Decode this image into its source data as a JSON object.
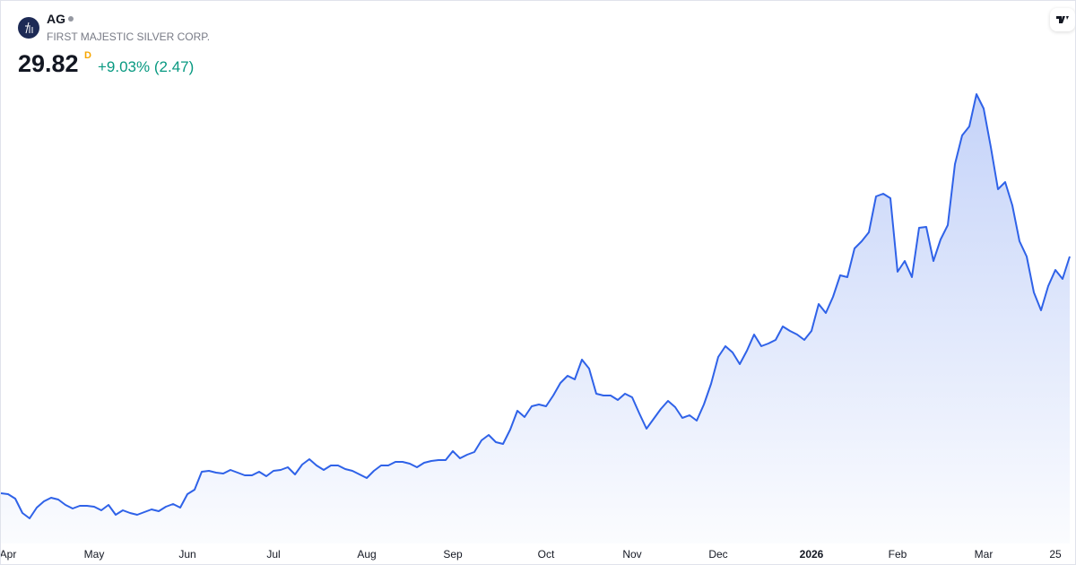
{
  "header": {
    "symbol": "AG",
    "name": "FIRST MAJESTIC SILVER CORP.",
    "price": "29.82",
    "interval": "D",
    "change": "+9.03% (2.47)"
  },
  "chart_data": {
    "type": "area",
    "color": "#2f62e8",
    "categories": [
      null,
      "Apr",
      null,
      null,
      null,
      null,
      null,
      null,
      null,
      null,
      null,
      null,
      null,
      "May",
      null,
      null,
      null,
      null,
      null,
      null,
      null,
      null,
      null,
      null,
      null,
      null,
      "Jun",
      null,
      null,
      null,
      null,
      null,
      null,
      null,
      null,
      null,
      null,
      null,
      "Jul",
      null,
      null,
      null,
      null,
      null,
      null,
      null,
      null,
      null,
      null,
      null,
      null,
      "Aug",
      null,
      null,
      null,
      null,
      null,
      null,
      null,
      null,
      null,
      null,
      null,
      "Sep",
      null,
      null,
      null,
      null,
      null,
      null,
      null,
      null,
      null,
      null,
      null,
      null,
      "Oct",
      null,
      null,
      null,
      null,
      null,
      null,
      null,
      null,
      null,
      null,
      null,
      "Nov",
      null,
      null,
      null,
      null,
      null,
      null,
      null,
      null,
      null,
      null,
      null,
      "Dec",
      null,
      null,
      null,
      null,
      null,
      null,
      null,
      null,
      null,
      null,
      null,
      null,
      "2026",
      null,
      null,
      null,
      null,
      null,
      null,
      null,
      null,
      null,
      null,
      null,
      "Feb",
      null,
      null,
      null,
      null,
      null,
      null,
      null,
      null,
      null,
      null,
      null,
      "Mar",
      null,
      null,
      null,
      null,
      null,
      null,
      null,
      null,
      null,
      "25",
      null,
      null
    ],
    "values": [
      7.64,
      7.56,
      7.14,
      5.8,
      5.29,
      6.3,
      6.89,
      7.22,
      7.06,
      6.55,
      6.22,
      6.47,
      6.47,
      6.38,
      6.05,
      6.55,
      5.63,
      6.05,
      5.8,
      5.63,
      5.88,
      6.13,
      5.96,
      6.38,
      6.64,
      6.3,
      7.56,
      7.98,
      9.66,
      9.74,
      9.58,
      9.49,
      9.83,
      9.58,
      9.32,
      9.32,
      9.66,
      9.24,
      9.74,
      9.83,
      10.08,
      9.41,
      10.33,
      10.84,
      10.25,
      9.83,
      10.25,
      10.25,
      9.91,
      9.74,
      9.41,
      9.07,
      9.74,
      10.25,
      10.25,
      10.58,
      10.58,
      10.42,
      10.08,
      10.5,
      10.67,
      10.75,
      10.75,
      11.59,
      10.92,
      11.26,
      11.51,
      12.6,
      13.1,
      12.43,
      12.26,
      13.61,
      15.37,
      14.78,
      15.79,
      15.96,
      15.79,
      16.8,
      17.98,
      18.65,
      18.31,
      20.16,
      19.32,
      16.97,
      16.8,
      16.8,
      16.38,
      16.97,
      16.63,
      15.12,
      13.69,
      14.62,
      15.54,
      16.3,
      15.71,
      14.7,
      14.95,
      14.45,
      15.96,
      17.89,
      20.41,
      21.42,
      20.83,
      19.74,
      21.0,
      22.51,
      21.42,
      21.67,
      22.01,
      23.27,
      22.85,
      22.51,
      22.01,
      22.85,
      25.37,
      24.53,
      26.04,
      28.06,
      27.89,
      30.58,
      31.25,
      32.09,
      35.45,
      35.7,
      35.28,
      28.39,
      29.4,
      27.89,
      32.51,
      32.59,
      29.4,
      31.42,
      32.76,
      38.47,
      41.16,
      42.0,
      45.02,
      43.68,
      40.07,
      36.12,
      36.79,
      34.61,
      31.25,
      29.82,
      26.46,
      24.78,
      27.05,
      28.56,
      27.72,
      29.82
    ],
    "ylim": [
      3.36,
      46.62
    ]
  }
}
